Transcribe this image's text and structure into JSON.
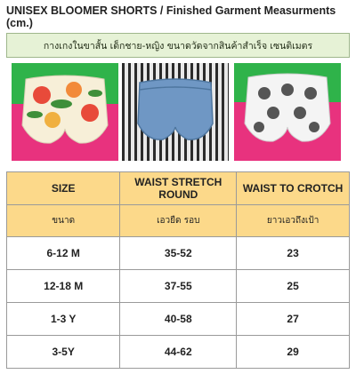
{
  "title": "UNISEX BLOOMER SHORTS / Finished Garment Measurments (cm.)",
  "subtitle": "กางเกงในขาสั้น เด็กชาย-หญิง ขนาดวัดจากสินค้าสำเร็จ เซนติเมตร",
  "photos": [
    "floral-bloomer-photo",
    "denim-bloomer-photo",
    "hedgehog-print-bloomer-photo"
  ],
  "table": {
    "headers": [
      "SIZE",
      "WAIST STRETCH ROUND",
      "WAIST TO CROTCH"
    ],
    "thai_headers": [
      "ขนาด",
      "เอวยืด รอบ",
      "ยาวเอวถึงเป้า"
    ],
    "rows": [
      [
        "6-12 M",
        "35-52",
        "23"
      ],
      [
        "12-18 M",
        "37-55",
        "25"
      ],
      [
        "1-3 Y",
        "40-58",
        "27"
      ],
      [
        "3-5Y",
        "44-62",
        "29"
      ]
    ]
  },
  "colors": {
    "header_bg": "#fcd98a",
    "subtitle_bg": "#e6f2d6",
    "green": "#2fb34a",
    "pink": "#e8327e"
  }
}
